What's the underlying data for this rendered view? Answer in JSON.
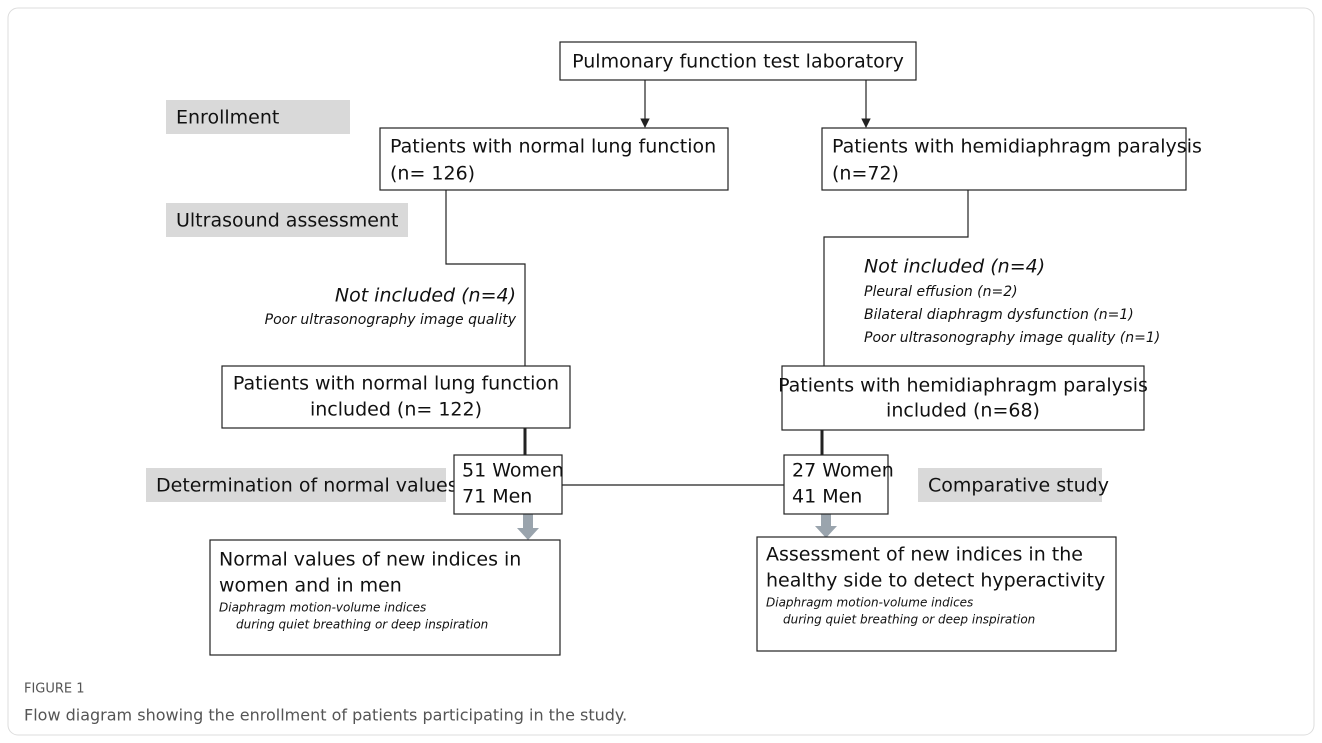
{
  "figure_label": "FIGURE 1",
  "caption": "Flow diagram showing the enrollment of patients participating in the study.",
  "stages": [
    "Enrollment",
    "Ultrasound assessment",
    "Determination of normal values",
    "Comparative study"
  ],
  "nodes": [
    {
      "lines": [
        "Pulmonary function test laboratory"
      ]
    },
    {
      "lines": [
        "Patients with normal lung function",
        "(n= 126)"
      ]
    },
    {
      "lines": [
        "Patients with hemidiaphragm paralysis",
        "(n=72)"
      ]
    },
    {
      "lines": [
        "Patients with normal lung function",
        "included (n= 122)"
      ]
    },
    {
      "lines": [
        "Patients with hemidiaphragm paralysis",
        "included (n=68)"
      ]
    },
    {
      "lines": [
        "51 Women",
        "71 Men"
      ]
    },
    {
      "lines": [
        "27 Women",
        "41 Men"
      ]
    },
    {
      "lines": [
        "Normal values of new indices in",
        "women and in men"
      ],
      "notes": [
        "Diaphragm motion-volume indices",
        "during quiet breathing or deep inspiration"
      ]
    },
    {
      "lines": [
        "Assessment of new indices in the",
        "healthy side to detect hyperactivity"
      ],
      "notes": [
        "Diaphragm motion-volume indices",
        "during quiet breathing or deep inspiration"
      ]
    }
  ],
  "exclusions": [
    {
      "title": "Not included (n=4)",
      "reasons": [
        "Poor ultrasonography image quality"
      ]
    },
    {
      "title": "Not included (n=4)",
      "reasons": [
        "Pleural effusion (n=2)",
        "Bilateral diaphragm dysfunction (n=1)",
        "Poor ultrasonography image quality (n=1)"
      ]
    }
  ]
}
